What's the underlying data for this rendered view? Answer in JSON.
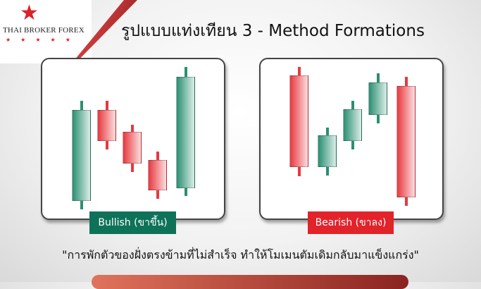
{
  "brand": {
    "name": "THAI BROKER FOREX",
    "star_color": "#d8232a"
  },
  "title": "รูปแบบแท่งเทียน 3 - Method Formations",
  "bullish": {
    "label": "Bullish (ขาขึ้น)",
    "color": "#0e7259"
  },
  "bearish": {
    "label": "Bearish (ขาลง)",
    "color": "#e2232a"
  },
  "colors": {
    "green_candle": "#2a8f72",
    "red_candle": "#e8383e"
  },
  "quote": "\"การพักตัวของฝั่งตรงข้ามที่ไม่สำเร็จ ทำให้โมเมนตัมเดิมกลับมาแข็งแกร่ง\""
}
